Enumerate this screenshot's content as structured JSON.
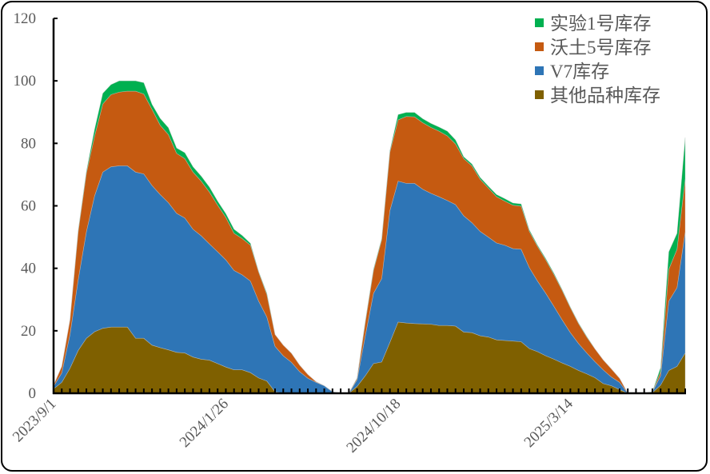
{
  "chart_data": {
    "type": "area",
    "stacked": true,
    "title": "",
    "xlabel": "",
    "ylabel": "",
    "ylim": [
      0,
      120
    ],
    "yticks": [
      0,
      20,
      40,
      60,
      80,
      100,
      120
    ],
    "x_tick_labels": [
      {
        "index": 0,
        "label": "2023/9/1"
      },
      {
        "index": 21,
        "label": "2024/1/26"
      },
      {
        "index": 42,
        "label": "2024/10/18"
      },
      {
        "index": 63,
        "label": "2025/3/14"
      }
    ],
    "n_points": 78,
    "legend_position": "top-right",
    "grid": false,
    "series": [
      {
        "name": "其他品种库存",
        "color": "#7F6000",
        "values": [
          1.4,
          3.5,
          8,
          13.7,
          17.6,
          19.7,
          20.8,
          21.2,
          21.2,
          21.2,
          17.6,
          17.6,
          15.4,
          14.6,
          13.9,
          13.1,
          12.9,
          11.6,
          10.9,
          10.6,
          9.5,
          8.4,
          7.5,
          7.5,
          6.6,
          4.9,
          3.9,
          0.5,
          0,
          0,
          0,
          0,
          0,
          0,
          0,
          0,
          0,
          2.2,
          5.6,
          9.5,
          10,
          16.3,
          22.8,
          22.5,
          22.3,
          22.2,
          22.1,
          21.7,
          21.7,
          21.5,
          19.6,
          19.4,
          18.4,
          18,
          17.1,
          16.9,
          16.7,
          16.5,
          14.3,
          13.3,
          12,
          10.9,
          9.7,
          8.6,
          7.3,
          6.2,
          5,
          3.1,
          2.4,
          1.2,
          0,
          0,
          0,
          0.2,
          2.6,
          7.3,
          8.6,
          12.9
        ]
      },
      {
        "name": "V7库存",
        "color": "#2E75B6",
        "values": [
          0.8,
          3,
          10.8,
          22.6,
          34.1,
          43.5,
          50,
          51.3,
          51.6,
          51.6,
          53.2,
          52.6,
          51.1,
          49,
          47.1,
          44.5,
          43.2,
          40.9,
          39.5,
          37.2,
          35.8,
          34.3,
          31.8,
          30.4,
          29.3,
          24.6,
          20.5,
          14.5,
          12,
          9.9,
          6.9,
          4.8,
          3.5,
          2.4,
          0.5,
          0,
          0,
          2.1,
          12.8,
          22.5,
          26.7,
          42.2,
          45.1,
          44.7,
          44.9,
          43.1,
          41.9,
          41.2,
          40,
          38.9,
          37.2,
          35.2,
          33.4,
          32,
          31,
          30.5,
          29.6,
          29.6,
          25.9,
          22.6,
          20,
          16.9,
          13.8,
          10.8,
          8.6,
          6.7,
          5.1,
          4.4,
          2.8,
          2.3,
          0,
          0,
          0,
          0.2,
          3,
          22.2,
          25.2,
          38.8
        ]
      },
      {
        "name": "沃土5号库存",
        "color": "#C55A11",
        "values": [
          0.4,
          2.1,
          4.7,
          15.4,
          18.7,
          19.1,
          21.8,
          23.1,
          23.6,
          23.9,
          25.9,
          25.6,
          24.4,
          22.2,
          21.8,
          19.2,
          19,
          18.3,
          17.5,
          16.6,
          14.9,
          13.6,
          11.9,
          11.6,
          11.5,
          9.3,
          7.2,
          3.8,
          3.4,
          2.9,
          2.1,
          1.2,
          0.2,
          0,
          0,
          0,
          0,
          0.5,
          4.3,
          7.3,
          12.4,
          18.7,
          19.6,
          21.4,
          21.3,
          21.3,
          21.1,
          21,
          20.7,
          19.4,
          18.3,
          18.2,
          16.7,
          15.7,
          14.8,
          14.1,
          13.9,
          13.8,
          11.6,
          11.1,
          10.7,
          10.2,
          9.4,
          8,
          6.4,
          5.1,
          4.1,
          3.2,
          2.6,
          1.3,
          0,
          0,
          0,
          0,
          1.3,
          10.2,
          12.3,
          17
        ]
      },
      {
        "name": "实验1号库存",
        "color": "#00B050",
        "values": [
          0,
          0,
          0,
          0.3,
          0.6,
          2.2,
          3.4,
          3.2,
          3.6,
          3.3,
          3.3,
          3.6,
          1.6,
          2.2,
          2.2,
          1.7,
          1.9,
          1.7,
          1.6,
          1.6,
          1.3,
          1.2,
          1.3,
          1,
          0.6,
          0.2,
          0.4,
          0,
          0,
          0,
          0,
          0,
          0,
          0,
          0,
          0,
          0,
          0.1,
          0.3,
          0.4,
          0.4,
          0.5,
          1.7,
          1.3,
          1.4,
          1.3,
          1.3,
          1.3,
          1.5,
          1.3,
          0.6,
          0.6,
          0.6,
          0.6,
          0.7,
          0.8,
          0.7,
          0.7,
          0.5,
          0.4,
          0.4,
          0.4,
          0.3,
          0.2,
          0.2,
          0.2,
          0,
          0,
          0,
          0,
          0,
          0,
          0,
          0.1,
          1.3,
          5.6,
          5.1,
          13.2
        ]
      }
    ],
    "legend_order": [
      "实验1号库存",
      "沃土5号库存",
      "V7库存",
      "其他品种库存"
    ]
  }
}
